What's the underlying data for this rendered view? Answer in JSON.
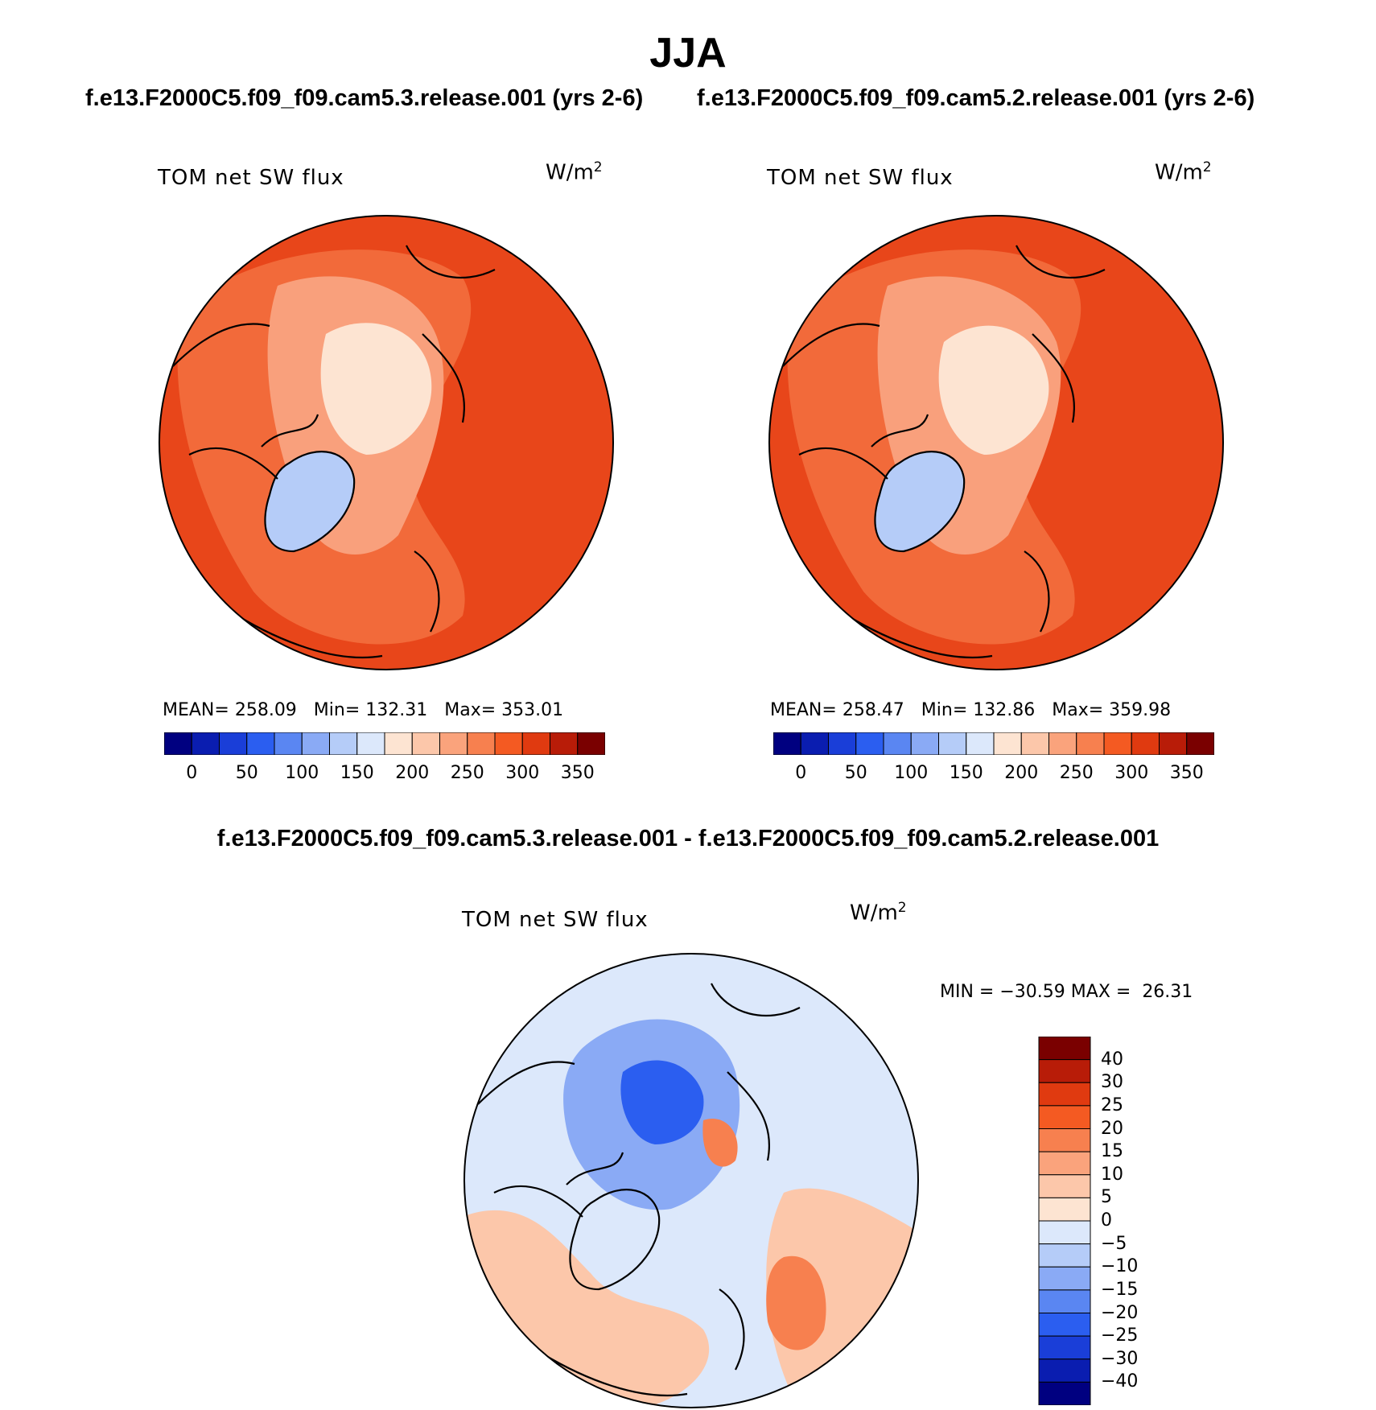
{
  "title": "JJA",
  "cases": {
    "left": "f.e13.F2000C5.f09_f09.cam5.3.release.001 (yrs 2-6)",
    "right": "f.e13.F2000C5.f09_f09.cam5.2.release.001 (yrs 2-6)",
    "diff": "f.e13.F2000C5.f09_f09.cam5.3.release.001 - f.e13.F2000C5.f09_f09.cam5.2.release.001"
  },
  "panels": {
    "left": {
      "variable": "TOM net SW flux",
      "units_base": "W/m",
      "units_exp": "2",
      "stats": {
        "mean_label": "MEAN=",
        "mean": "258.09",
        "min_label": "Min=",
        "min": "132.31",
        "max_label": "Max=",
        "max": "353.01"
      }
    },
    "right": {
      "variable": "TOM net SW flux",
      "units_base": "W/m",
      "units_exp": "2",
      "stats": {
        "mean_label": "MEAN=",
        "mean": "258.47",
        "min_label": "Min=",
        "min": "132.86",
        "max_label": "Max=",
        "max": "359.98"
      }
    },
    "diff": {
      "variable": "TOM net SW flux",
      "units_base": "W/m",
      "units_exp": "2",
      "stats": {
        "min_label": "MIN =",
        "min": "−30.59",
        "max_label": "MAX =",
        "max": "26.31"
      }
    }
  },
  "colorbars": {
    "field": {
      "ticks": [
        "0",
        "50",
        "100",
        "150",
        "200",
        "250",
        "300",
        "350"
      ],
      "colors": [
        "#000080",
        "#0a1db0",
        "#1a3ed8",
        "#2b5ef0",
        "#5a86f2",
        "#8aaaf5",
        "#b5ccf8",
        "#dce8fb",
        "#fde4d2",
        "#fcc7aa",
        "#faa37c",
        "#f7804f",
        "#f45a22",
        "#e03a10",
        "#b81c08",
        "#7a0000"
      ]
    },
    "diff": {
      "ticks": [
        "40",
        "30",
        "25",
        "20",
        "15",
        "10",
        "5",
        "0",
        "−5",
        "−10",
        "−15",
        "−20",
        "−25",
        "−30",
        "−40"
      ],
      "colors": [
        "#7a0000",
        "#b81c08",
        "#e03a10",
        "#f45a22",
        "#f7804f",
        "#faa37c",
        "#fcc7aa",
        "#fde4d2",
        "#dce8fb",
        "#b5ccf8",
        "#8aaaf5",
        "#5a86f2",
        "#2b5ef0",
        "#1a3ed8",
        "#0a1db0",
        "#000080"
      ]
    }
  },
  "maps": {
    "field_fill": {
      "outer": "#e8461a",
      "mid": "#f26a3a",
      "inner": "#f9a07c",
      "core": "#fde4d2",
      "greenland": "#b5ccf8"
    },
    "diff_fill": {
      "base": "#dce8fb",
      "blue": "#8aaaf5",
      "darkblue": "#2b5ef0",
      "red": "#f7804f",
      "pale_red": "#fcc7aa"
    }
  }
}
